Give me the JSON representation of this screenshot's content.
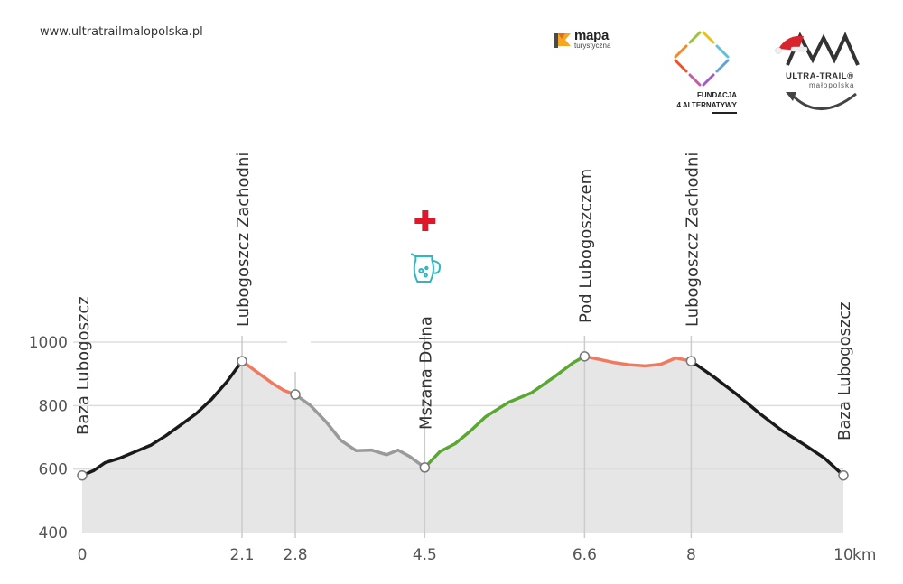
{
  "header": {
    "url": "www.ultratrailmalopolska.pl",
    "logos": {
      "mapa": {
        "title": "mapa",
        "subtitle": "turystyczna"
      },
      "fundacja": {
        "line1": "FUNDACJA",
        "line2": "4 ALTERNATYWY"
      },
      "ultratrail": {
        "title": "ULTRA-TRAIL®",
        "subtitle": "małopolska"
      }
    }
  },
  "icons": {
    "first_aid": {
      "name": "first-aid-cross-icon",
      "color": "#e0162b"
    },
    "water": {
      "name": "water-jug-icon",
      "color": "#29b8c4"
    }
  },
  "colors": {
    "fill": "#e6e6e6",
    "grid": "#dddddd",
    "black": "#1a1a1a",
    "salmon": "#ee7a60",
    "grey": "#9a9a9a",
    "green": "#5aa832"
  },
  "chart_data": {
    "type": "area",
    "xlabel": "",
    "ylabel": "",
    "x_unit": "km",
    "xlim": [
      0,
      10
    ],
    "ylim": [
      400,
      1050
    ],
    "yticks": [
      400,
      600,
      800,
      1000
    ],
    "xticks": [
      0,
      2.1,
      2.8,
      4.5,
      6.6,
      8,
      10
    ],
    "xtick_labels": [
      "0",
      "2.1",
      "2.8",
      "4.5",
      "6.6",
      "8",
      "10"
    ],
    "grid": true,
    "profile": [
      [
        0,
        580
      ],
      [
        0.15,
        595
      ],
      [
        0.3,
        620
      ],
      [
        0.5,
        635
      ],
      [
        0.7,
        655
      ],
      [
        0.9,
        675
      ],
      [
        1.1,
        705
      ],
      [
        1.3,
        740
      ],
      [
        1.5,
        775
      ],
      [
        1.7,
        820
      ],
      [
        1.9,
        875
      ],
      [
        2.1,
        940
      ],
      [
        2.3,
        905
      ],
      [
        2.5,
        870
      ],
      [
        2.65,
        848
      ],
      [
        2.8,
        835
      ],
      [
        3.0,
        800
      ],
      [
        3.2,
        750
      ],
      [
        3.4,
        690
      ],
      [
        3.6,
        658
      ],
      [
        3.8,
        660
      ],
      [
        4.0,
        645
      ],
      [
        4.15,
        660
      ],
      [
        4.3,
        640
      ],
      [
        4.5,
        605
      ],
      [
        4.7,
        655
      ],
      [
        4.9,
        680
      ],
      [
        5.1,
        720
      ],
      [
        5.3,
        765
      ],
      [
        5.6,
        810
      ],
      [
        5.9,
        840
      ],
      [
        6.2,
        890
      ],
      [
        6.45,
        935
      ],
      [
        6.6,
        955
      ],
      [
        6.8,
        945
      ],
      [
        7.0,
        935
      ],
      [
        7.2,
        928
      ],
      [
        7.4,
        925
      ],
      [
        7.6,
        930
      ],
      [
        7.8,
        950
      ],
      [
        8.0,
        940
      ],
      [
        8.3,
        890
      ],
      [
        8.6,
        835
      ],
      [
        8.9,
        775
      ],
      [
        9.2,
        720
      ],
      [
        9.5,
        675
      ],
      [
        9.75,
        635
      ],
      [
        10,
        580
      ]
    ],
    "segments": [
      {
        "from": 0,
        "to": 2.1,
        "color": "#1a1a1a"
      },
      {
        "from": 2.1,
        "to": 2.8,
        "color": "#ee7a60"
      },
      {
        "from": 2.8,
        "to": 4.5,
        "color": "#9a9a9a"
      },
      {
        "from": 4.5,
        "to": 6.6,
        "color": "#5aa832"
      },
      {
        "from": 6.6,
        "to": 8,
        "color": "#ee7a60"
      },
      {
        "from": 8,
        "to": 10,
        "color": "#1a1a1a"
      }
    ],
    "waypoints": [
      {
        "km": 0,
        "elevation": 580,
        "label": "Baza Lubogoszcz"
      },
      {
        "km": 2.1,
        "elevation": 940,
        "label": "Lubogoszcz Zachodni"
      },
      {
        "km": 2.8,
        "elevation": 835,
        "label": ""
      },
      {
        "km": 4.5,
        "elevation": 605,
        "label": "Mszana Dolna"
      },
      {
        "km": 6.6,
        "elevation": 955,
        "label": "Pod Lubogoszczem"
      },
      {
        "km": 8,
        "elevation": 940,
        "label": "Lubogoszcz Zachodni"
      },
      {
        "km": 10,
        "elevation": 580,
        "label": "Baza Lubogoszcz"
      }
    ]
  }
}
